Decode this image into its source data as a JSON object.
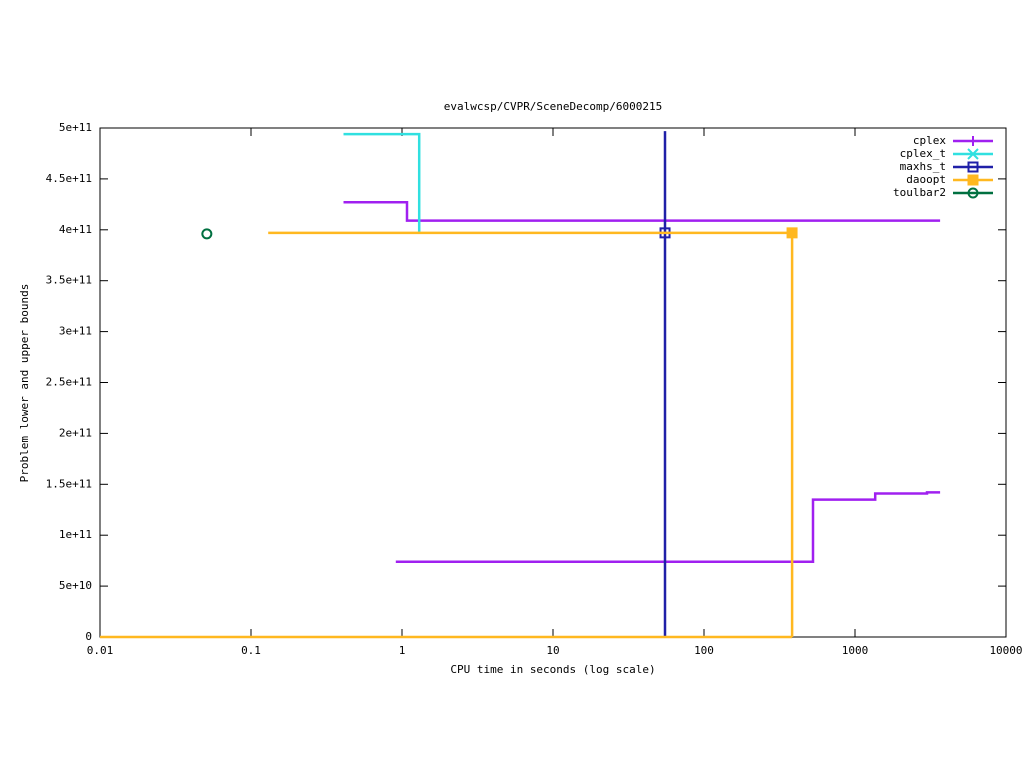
{
  "chart_data": {
    "type": "line",
    "title": "evalwcsp/CVPR/SceneDecomp/6000215",
    "x_label": "CPU time in seconds (log scale)",
    "y_label": "Problem lower and upper bounds",
    "x_log": true,
    "xlim": [
      0.01,
      10000
    ],
    "xticks": [
      0.01,
      0.1,
      1,
      10,
      100,
      1000,
      10000
    ],
    "ylim": [
      0,
      500000000000
    ],
    "yticks": [
      0,
      {
        "value": 50000000000,
        "label": "5e+10"
      },
      {
        "value": 100000000000,
        "label": "1e+11"
      },
      {
        "value": 150000000000,
        "label": "1.5e+11"
      },
      {
        "value": 200000000000,
        "label": "2e+11"
      },
      {
        "value": 250000000000,
        "label": "2.5e+11"
      },
      {
        "value": 300000000000,
        "label": "3e+11"
      },
      {
        "value": 350000000000,
        "label": "3.5e+11"
      },
      {
        "value": 400000000000,
        "label": "4e+11"
      },
      {
        "value": 450000000000,
        "label": "4.5e+11"
      },
      {
        "value": 500000000000,
        "label": "5e+11"
      }
    ],
    "legend": "top-right",
    "series": [
      {
        "name": "cplex",
        "color": "#a020f0",
        "marker_shape": "plus",
        "lines": true,
        "x": [
          0.41,
          1.08,
          1.08,
          3660,
          null,
          0.91,
          527,
          527,
          1360,
          1360,
          3000,
          3000,
          3660
        ],
        "values": [
          427000000000,
          427000000000,
          409000000000,
          409000000000,
          null,
          74000000000,
          74000000000,
          135000000000,
          135000000000,
          141000000000,
          141000000000,
          142000000000,
          142000000000
        ]
      },
      {
        "name": "cplex_t",
        "color": "#30e0e0",
        "marker_shape": "cross",
        "lines": true,
        "x": [
          0.41,
          1.3,
          1.3
        ],
        "values": [
          494000000000,
          494000000000,
          398000000000
        ]
      },
      {
        "name": "maxhs_t",
        "color": "#2020a8",
        "marker_shape": "square",
        "lines": true,
        "x": [
          55.2,
          55.2
        ],
        "values": [
          497000000000,
          0
        ],
        "marker_x": 55.2,
        "marker_value": 397000000000
      },
      {
        "name": "daoopt",
        "color": "#ffb820",
        "marker_shape": "filled-square",
        "lines": true,
        "x": [
          0.13,
          383,
          383,
          null,
          0.01,
          383
        ],
        "values": [
          397000000000,
          397000000000,
          0,
          null,
          0,
          0
        ],
        "marker_x": 383,
        "marker_value": 397000000000
      },
      {
        "name": "toulbar2",
        "color": "#007040",
        "marker_shape": "circle",
        "lines": false,
        "x": [
          0.051
        ],
        "values": [
          396000000000
        ]
      }
    ]
  }
}
